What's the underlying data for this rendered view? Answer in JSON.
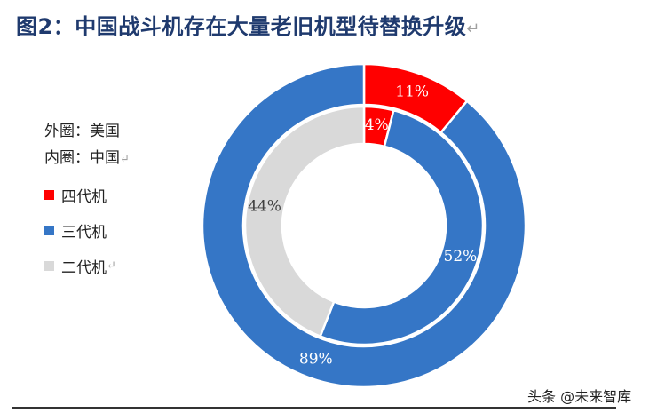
{
  "title": "图2：中国战斗机存在大量老旧机型待替换升级",
  "legend": {
    "outer_note": "外圈：美国",
    "inner_note": "内圈：中国",
    "items": [
      {
        "label": "四代机",
        "color": "#ff0000"
      },
      {
        "label": "三代机",
        "color": "#3576c6"
      },
      {
        "label": "二代机",
        "color": "#d9d9d9"
      }
    ]
  },
  "chart_data": {
    "type": "pie",
    "variant": "double-donut",
    "rings": [
      {
        "name": "外圈：美国",
        "slices": [
          {
            "label": "四代机",
            "value": 11,
            "display": "11%"
          },
          {
            "label": "三代机",
            "value": 89,
            "display": "89%"
          }
        ]
      },
      {
        "name": "内圈：中国",
        "slices": [
          {
            "label": "四代机",
            "value": 4,
            "display": "4%"
          },
          {
            "label": "三代机",
            "value": 52,
            "display": "52%"
          },
          {
            "label": "二代机",
            "value": 44,
            "display": "44%"
          }
        ]
      }
    ],
    "colors": {
      "四代机": "#ff0000",
      "三代机": "#3576c6",
      "二代机": "#d9d9d9"
    }
  },
  "watermark": "头条 @未来智库"
}
